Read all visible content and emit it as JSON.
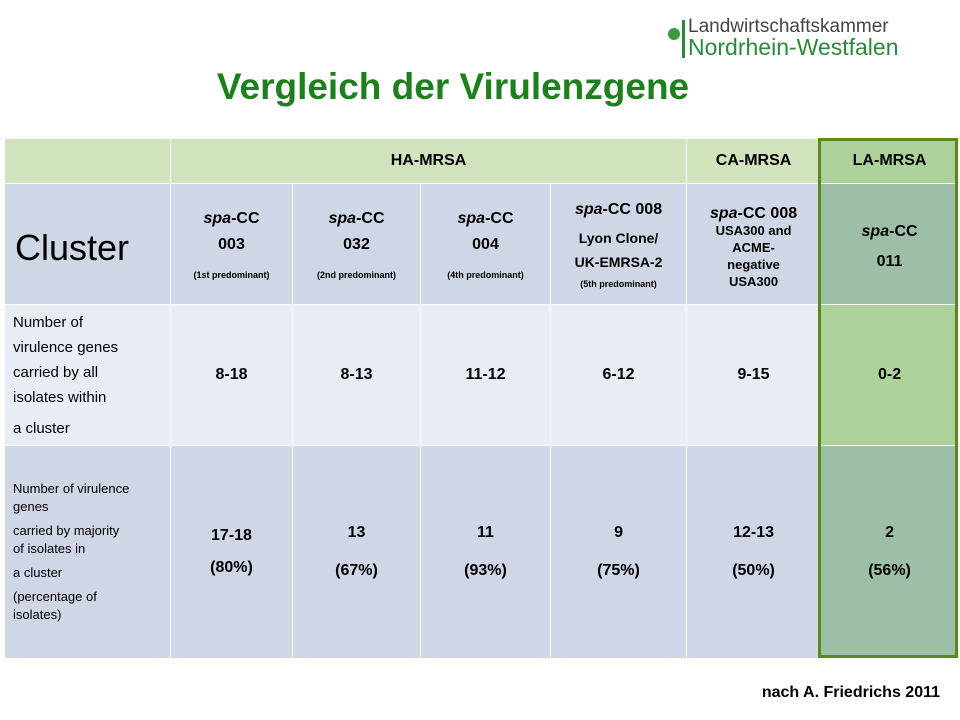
{
  "logo": {
    "line1": "Landwirtschaftskammer",
    "line2": "Nordrhein-Westfalen"
  },
  "title": "Vergleich der Virulenzgene",
  "table": {
    "groups": {
      "ha": "HA-MRSA",
      "ca": "CA-MRSA",
      "la": "LA-MRSA"
    },
    "cluster_label": "Cluster",
    "clusters": [
      {
        "prefix": "spa",
        "suffix": "-CC",
        "num": "003",
        "tag": "(1st predominant)"
      },
      {
        "prefix": "spa",
        "suffix": "-CC",
        "num": "032",
        "tag": "(2nd predominant)"
      },
      {
        "prefix": "spa",
        "suffix": "-CC",
        "num": "004",
        "tag": "(4th predominant)"
      },
      {
        "prefix": "spa",
        "suffix": "-CC 008",
        "l2": "Lyon Clone/",
        "l3": "UK-EMRSA-2",
        "tag": "(5th predominant)"
      },
      {
        "prefix": "spa",
        "suffix": "-CC 008",
        "l2": "USA300 and",
        "l3": "ACME-",
        "l4": "negative",
        "l5": "USA300"
      },
      {
        "prefix": "spa",
        "suffix": "-CC",
        "num": "011"
      }
    ],
    "row2": {
      "label_lines": [
        "Number of",
        "virulence genes",
        "carried by all",
        "isolates within",
        "a cluster"
      ],
      "values": [
        "8-18",
        "8-13",
        "11-12",
        "6-12",
        "9-15",
        "0-2"
      ]
    },
    "row3": {
      "label_lines": [
        "Number of virulence",
        "genes",
        "carried by majority",
        "of isolates in",
        "a cluster",
        "(percentage of",
        "isolates)"
      ],
      "values": [
        {
          "n": "17-18",
          "p": "(80%)"
        },
        {
          "n": "13",
          "p": "(67%)"
        },
        {
          "n": "11",
          "p": "(93%)"
        },
        {
          "n": "9",
          "p": "(75%)"
        },
        {
          "n": "12-13",
          "p": "(50%)"
        },
        {
          "n": "2",
          "p": "(56%)"
        }
      ]
    }
  },
  "footer": "nach A. Friedrichs 2011"
}
